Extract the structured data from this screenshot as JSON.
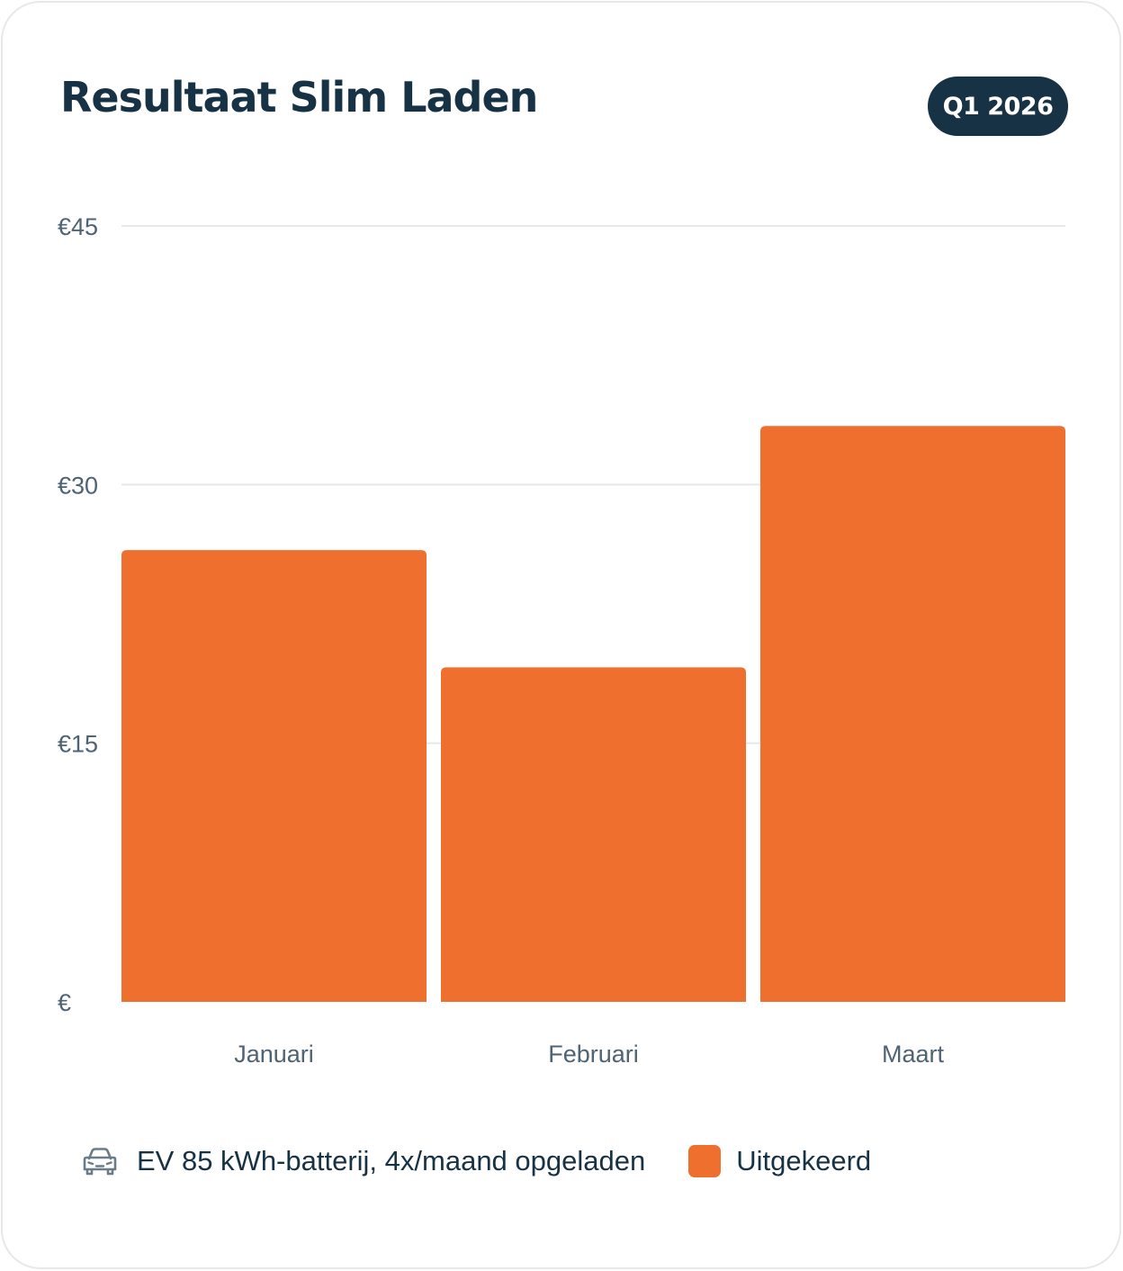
{
  "header": {
    "title": "Resultaat Slim Laden",
    "period_badge": "Q1 2026"
  },
  "colors": {
    "bar": "#ee6f2e",
    "text_dark": "#173245",
    "text_muted": "#4e6373",
    "grid": "#e6e8ea"
  },
  "legend": {
    "icon": "car-icon",
    "note": "EV 85 kWh-batterij, 4x/maand opgeladen",
    "series_label": "Uitgekeerd"
  },
  "chart_data": {
    "type": "bar",
    "categories": [
      "Januari",
      "Februari",
      "Maart"
    ],
    "series": [
      {
        "name": "Uitgekeerd",
        "values": [
          26.2,
          19.4,
          33.4
        ]
      }
    ],
    "ylim": [
      0,
      45
    ],
    "yticks": [
      0,
      15,
      30,
      45
    ],
    "ytick_labels": [
      "€",
      "€15",
      "€30",
      "€45"
    ],
    "grid": true,
    "legend_position": "bottom"
  }
}
